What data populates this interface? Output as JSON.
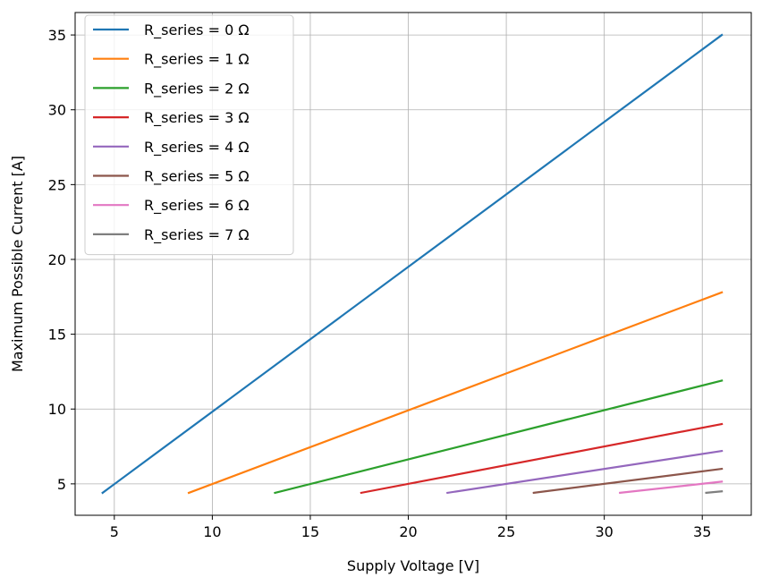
{
  "chart_data": {
    "type": "line",
    "title": "",
    "xlabel": "Supply Voltage [V]",
    "ylabel": "Maximum Possible Current [A]",
    "xlim": [
      3.0,
      37.5
    ],
    "ylim": [
      2.9,
      36.5
    ],
    "xticks": [
      5,
      10,
      15,
      20,
      25,
      30,
      35
    ],
    "yticks": [
      5,
      10,
      15,
      20,
      25,
      30,
      35
    ],
    "grid": true,
    "legend_position": "upper-left",
    "series": [
      {
        "name": "R_series = 0 Ω",
        "color": "#1f77b4",
        "points": [
          [
            4.4,
            4.4
          ],
          [
            36.0,
            35.0
          ]
        ]
      },
      {
        "name": "R_series = 1 Ω",
        "color": "#ff7f0e",
        "points": [
          [
            8.8,
            4.4
          ],
          [
            36.0,
            17.8
          ]
        ]
      },
      {
        "name": "R_series = 2 Ω",
        "color": "#2ca02c",
        "points": [
          [
            13.2,
            4.4
          ],
          [
            36.0,
            11.9
          ]
        ]
      },
      {
        "name": "R_series = 3 Ω",
        "color": "#d62728",
        "points": [
          [
            17.6,
            4.4
          ],
          [
            36.0,
            9.0
          ]
        ]
      },
      {
        "name": "R_series = 4 Ω",
        "color": "#9467bd",
        "points": [
          [
            22.0,
            4.4
          ],
          [
            36.0,
            7.2
          ]
        ]
      },
      {
        "name": "R_series = 5 Ω",
        "color": "#8c564b",
        "points": [
          [
            26.4,
            4.4
          ],
          [
            36.0,
            6.0
          ]
        ]
      },
      {
        "name": "R_series = 6 Ω",
        "color": "#e377c2",
        "points": [
          [
            30.8,
            4.4
          ],
          [
            36.0,
            5.15
          ]
        ]
      },
      {
        "name": "R_series = 7 Ω",
        "color": "#7f7f7f",
        "points": [
          [
            35.2,
            4.4
          ],
          [
            36.0,
            4.5
          ]
        ]
      }
    ]
  }
}
